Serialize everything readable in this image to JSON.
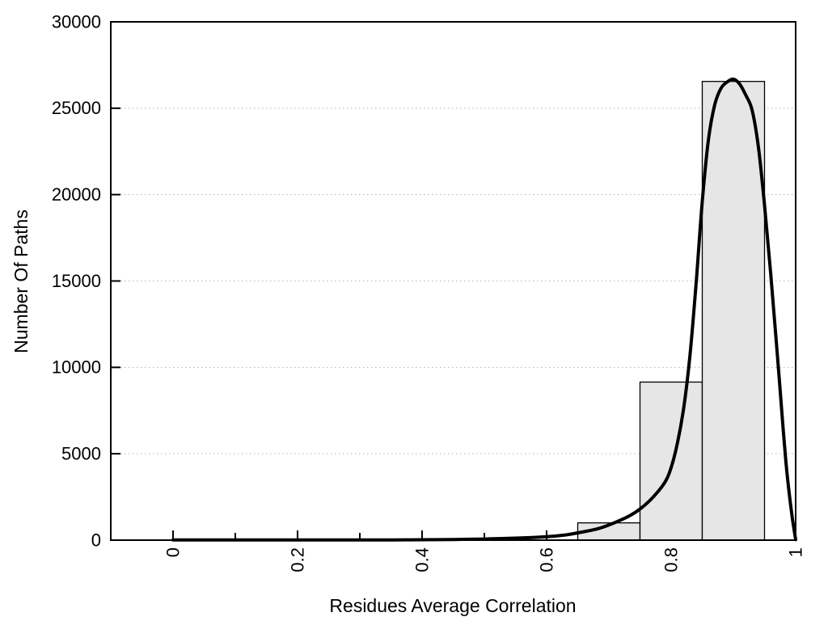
{
  "page": {
    "background": "#ffffff"
  },
  "chart_data": {
    "type": "bar",
    "subtype": "histogram-with-fit-curve",
    "title": "",
    "xlabel": "Residues Average Correlation",
    "ylabel": "Number Of Paths",
    "xlim": [
      -0.1,
      1.0
    ],
    "ylim": [
      0,
      30000
    ],
    "x_major_ticks": [
      0,
      0.2,
      0.4,
      0.6,
      0.8,
      1
    ],
    "x_major_tick_labels": [
      "0",
      "0.2",
      "0.4",
      "0.6",
      "0.8",
      "1"
    ],
    "x_minor_ticks": [
      0.1,
      0.3,
      0.5,
      0.7,
      0.9
    ],
    "y_ticks": [
      0,
      5000,
      10000,
      15000,
      20000,
      25000,
      30000
    ],
    "y_tick_labels": [
      "0",
      "5000",
      "10000",
      "15000",
      "20000",
      "25000",
      "30000"
    ],
    "x_tick_label_rotation_deg": -90,
    "grid": {
      "horizontal_dotted": true,
      "vertical": false,
      "color": "#b0b0b0"
    },
    "axis_color": "#000000",
    "bars": {
      "bin_edges": [
        0.65,
        0.75,
        0.85,
        0.95
      ],
      "bin_centers": [
        0.7,
        0.8,
        0.9
      ],
      "values": [
        1000,
        9150,
        26550
      ],
      "fill": "#e6e6e6",
      "stroke": "#000000"
    },
    "curve": {
      "name": "density-fit-curve",
      "color": "#000000",
      "stroke_width": 4,
      "points": [
        [
          0.0,
          10
        ],
        [
          0.05,
          10
        ],
        [
          0.1,
          10
        ],
        [
          0.15,
          10
        ],
        [
          0.2,
          10
        ],
        [
          0.25,
          11
        ],
        [
          0.3,
          13
        ],
        [
          0.35,
          16
        ],
        [
          0.4,
          22
        ],
        [
          0.45,
          38
        ],
        [
          0.5,
          65
        ],
        [
          0.55,
          115
        ],
        [
          0.6,
          200
        ],
        [
          0.63,
          300
        ],
        [
          0.65,
          420
        ],
        [
          0.68,
          640
        ],
        [
          0.7,
          880
        ],
        [
          0.73,
          1350
        ],
        [
          0.75,
          1800
        ],
        [
          0.77,
          2450
        ],
        [
          0.79,
          3350
        ],
        [
          0.8,
          4200
        ],
        [
          0.81,
          5600
        ],
        [
          0.82,
          7600
        ],
        [
          0.83,
          10600
        ],
        [
          0.84,
          14800
        ],
        [
          0.85,
          19600
        ],
        [
          0.86,
          23200
        ],
        [
          0.87,
          25200
        ],
        [
          0.88,
          26150
        ],
        [
          0.89,
          26520
        ],
        [
          0.9,
          26680
        ],
        [
          0.91,
          26400
        ],
        [
          0.92,
          25750
        ],
        [
          0.93,
          24900
        ],
        [
          0.94,
          22800
        ],
        [
          0.95,
          19400
        ],
        [
          0.96,
          15400
        ],
        [
          0.97,
          11000
        ],
        [
          0.98,
          6400
        ],
        [
          0.985,
          4300
        ],
        [
          0.99,
          2600
        ],
        [
          0.995,
          1200
        ],
        [
          1.0,
          30
        ]
      ]
    }
  }
}
